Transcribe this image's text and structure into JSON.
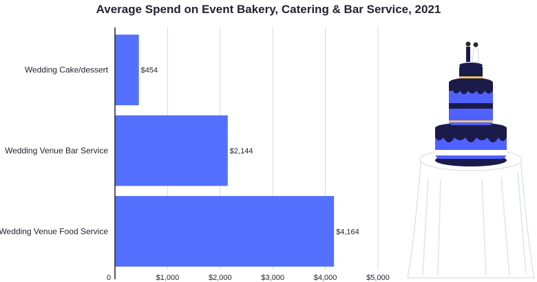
{
  "chart_data": {
    "type": "bar",
    "orientation": "horizontal",
    "title": "Average Spend on Event Bakery, Catering & Bar Service, 2021",
    "xlabel": "",
    "ylabel": "",
    "categories": [
      "Wedding Cake/dessert",
      "Wedding Venue Bar Service",
      "Wedding Venue Food Service"
    ],
    "values": [
      454,
      2144,
      4164
    ],
    "value_labels": [
      "$454",
      "$2,144",
      "$4,164"
    ],
    "xlim": [
      0,
      5000
    ],
    "x_ticks": [
      0,
      1000,
      2000,
      3000,
      4000,
      5000
    ],
    "x_tick_labels": [
      "0",
      "$1,000",
      "$2,000",
      "$3,000",
      "$4,000",
      "$5,000"
    ],
    "grid": "vertical",
    "bar_color": "#5470FF"
  },
  "colors": {
    "bar": "#5470FF",
    "grid": "#d9d9d9",
    "axis": "#222233",
    "cake_dark": "#1b1b4a",
    "cake_blue": "#4f62ff",
    "cake_gold": "#f2c063",
    "tablecloth_shadow": "#e6e9f5"
  },
  "illustration": {
    "icon": "wedding-cake-icon"
  }
}
